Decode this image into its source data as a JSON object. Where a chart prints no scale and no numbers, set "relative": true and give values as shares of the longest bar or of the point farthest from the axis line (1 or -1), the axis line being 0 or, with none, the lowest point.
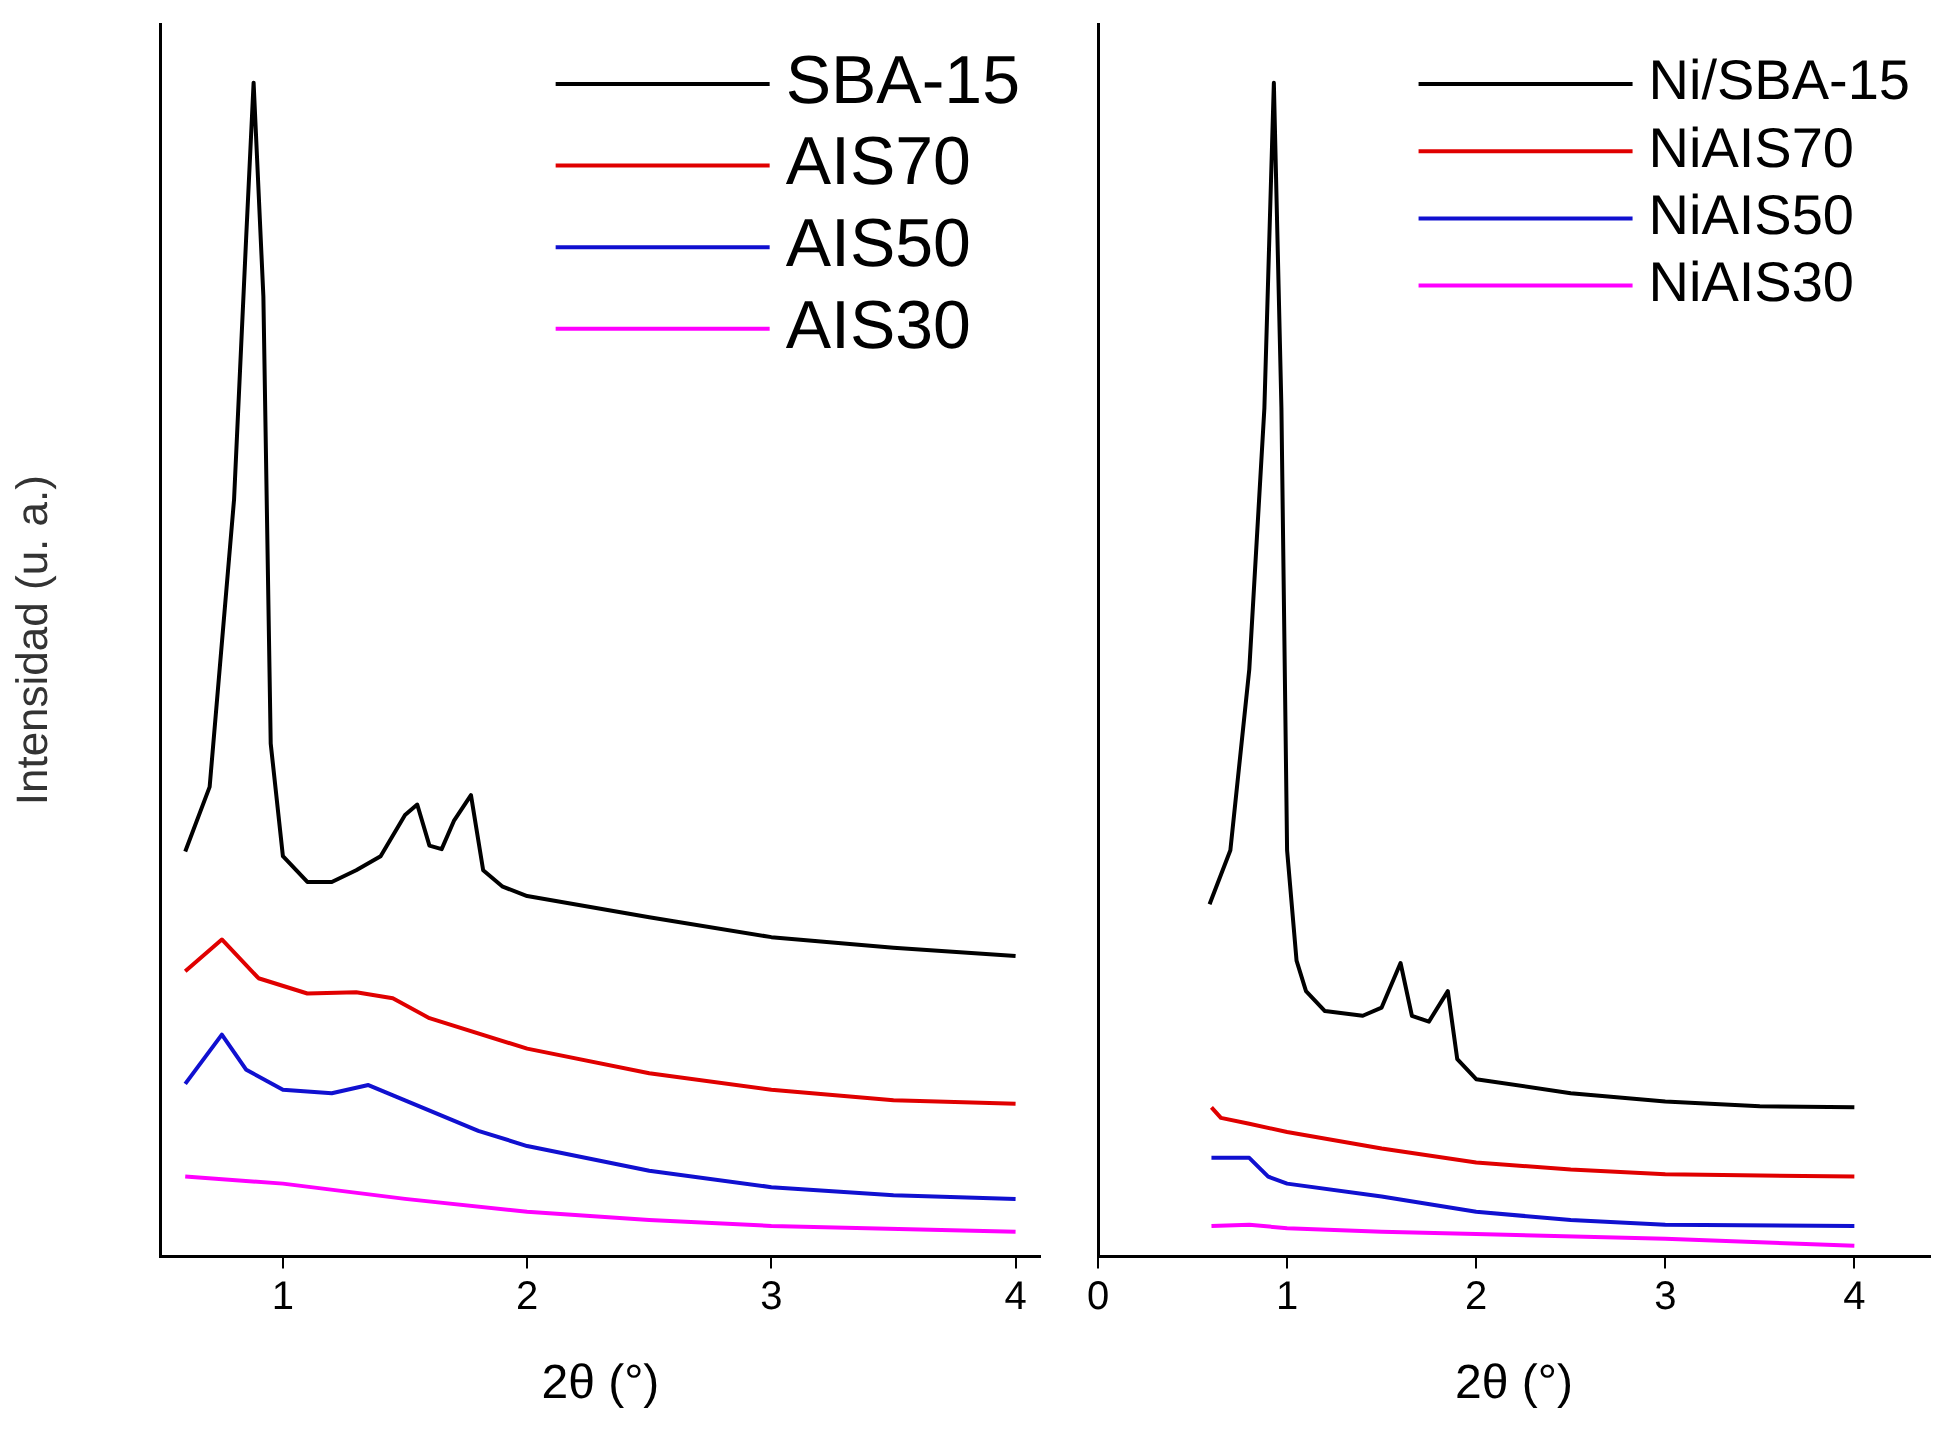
{
  "chart_data": [
    {
      "type": "line",
      "xlabel": "2θ (°)",
      "ylabel": "Intensidad (u. a.)",
      "relative": true,
      "xlim": [
        0.5,
        4.1
      ],
      "xticks": [
        1,
        2,
        3,
        4
      ],
      "legend": "top right",
      "grid": false,
      "marker": "none",
      "series": [
        {
          "name": "SBA-15",
          "color": "#000000",
          "x": [
            0.6,
            0.7,
            0.8,
            0.85,
            0.88,
            0.92,
            0.95,
            1.0,
            1.1,
            1.2,
            1.3,
            1.4,
            1.5,
            1.55,
            1.6,
            1.65,
            1.7,
            1.77,
            1.82,
            1.9,
            2.0,
            2.5,
            3.0,
            3.5,
            4.0
          ],
          "values": [
            0.345,
            0.4,
            0.645,
            0.87,
            1,
            0.818,
            0.437,
            0.341,
            0.319,
            0.319,
            0.329,
            0.341,
            0.376,
            0.385,
            0.35,
            0.347,
            0.371,
            0.393,
            0.329,
            0.315,
            0.307,
            0.289,
            0.272,
            0.263,
            0.256
          ]
        },
        {
          "name": "AIS70",
          "color": "#e00000",
          "x": [
            0.6,
            0.75,
            0.9,
            1.1,
            1.3,
            1.45,
            1.6,
            2.0,
            2.5,
            3.0,
            3.5,
            4.0
          ],
          "values": [
            0.243,
            0.27,
            0.237,
            0.224,
            0.225,
            0.22,
            0.203,
            0.177,
            0.156,
            0.142,
            0.133,
            0.13
          ]
        },
        {
          "name": "AIS50",
          "color": "#1010d0",
          "x": [
            0.6,
            0.75,
            0.85,
            1.0,
            1.2,
            1.35,
            1.5,
            1.8,
            2.0,
            2.5,
            3.0,
            3.5,
            4.0
          ],
          "values": [
            0.147,
            0.189,
            0.159,
            0.142,
            0.139,
            0.146,
            0.133,
            0.107,
            0.094,
            0.073,
            0.059,
            0.052,
            0.049
          ]
        },
        {
          "name": "AIS30",
          "color": "#ff00ff",
          "x": [
            0.6,
            1.0,
            1.5,
            2.0,
            2.5,
            3.0,
            4.0
          ],
          "values": [
            0.068,
            0.062,
            0.049,
            0.038,
            0.031,
            0.026,
            0.021
          ]
        }
      ]
    },
    {
      "type": "line",
      "xlabel": "2θ (°)",
      "relative": true,
      "xlim": [
        0,
        4.4
      ],
      "xticks": [
        0,
        1,
        2,
        3,
        4
      ],
      "legend": "top right",
      "grid": false,
      "marker": "none",
      "series": [
        {
          "name": "Ni/SBA-15",
          "color": "#000000",
          "x": [
            0.59,
            0.7,
            0.8,
            0.88,
            0.93,
            0.97,
            1.0,
            1.05,
            1.1,
            1.2,
            1.4,
            1.5,
            1.6,
            1.66,
            1.75,
            1.85,
            1.9,
            2.0,
            2.5,
            3.0,
            3.5,
            4.0
          ],
          "values": [
            0.3,
            0.346,
            0.5,
            0.723,
            1,
            0.723,
            0.346,
            0.252,
            0.226,
            0.209,
            0.205,
            0.212,
            0.25,
            0.205,
            0.2,
            0.226,
            0.168,
            0.151,
            0.139,
            0.132,
            0.128,
            0.127
          ]
        },
        {
          "name": "NiAIS70",
          "color": "#e00000",
          "x": [
            0.6,
            0.65,
            0.8,
            1.0,
            1.5,
            2.0,
            2.5,
            3.0,
            4.0
          ],
          "values": [
            0.127,
            0.118,
            0.113,
            0.106,
            0.092,
            0.08,
            0.074,
            0.07,
            0.068
          ]
        },
        {
          "name": "NiAIS50",
          "color": "#1010d0",
          "x": [
            0.6,
            0.8,
            0.9,
            1.0,
            1.5,
            2.0,
            2.5,
            3.0,
            4.0
          ],
          "values": [
            0.084,
            0.084,
            0.068,
            0.062,
            0.051,
            0.038,
            0.031,
            0.027,
            0.026
          ]
        },
        {
          "name": "NiAIS30",
          "color": "#ff00ff",
          "x": [
            0.6,
            0.8,
            1.0,
            1.5,
            2.0,
            3.0,
            3.5,
            4.0
          ],
          "values": [
            0.026,
            0.027,
            0.024,
            0.021,
            0.019,
            0.015,
            0.012,
            0.009
          ]
        }
      ]
    }
  ]
}
